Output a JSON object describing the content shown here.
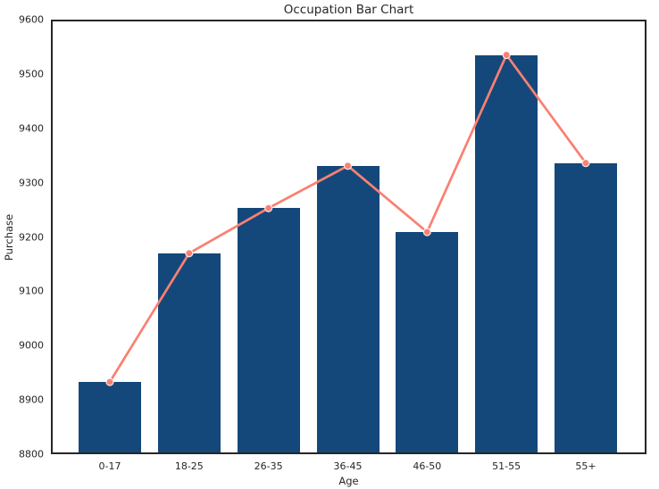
{
  "chart_data": {
    "type": "bar",
    "title": "Occupation Bar Chart",
    "xlabel": "Age",
    "ylabel": "Purchase",
    "categories": [
      "0-17",
      "18-25",
      "26-35",
      "36-45",
      "46-50",
      "51-55",
      "55+"
    ],
    "series": [
      {
        "name": "Purchase bars",
        "type": "bar",
        "color": "#15487A",
        "values": [
          8933,
          9170,
          9253,
          9331,
          9209,
          9535,
          9336
        ]
      },
      {
        "name": "Purchase line",
        "type": "line",
        "color": "#FA8072",
        "marker": "circle",
        "values": [
          8933,
          9170,
          9253,
          9331,
          9209,
          9535,
          9336
        ]
      }
    ],
    "ylim": [
      8800,
      9600
    ],
    "yticks": [
      8800,
      8900,
      9000,
      9100,
      9200,
      9300,
      9400,
      9500,
      9600
    ],
    "grid": false,
    "legend_position": "none",
    "plot_border": true,
    "text_color": "#262626",
    "background": "#ffffff"
  }
}
